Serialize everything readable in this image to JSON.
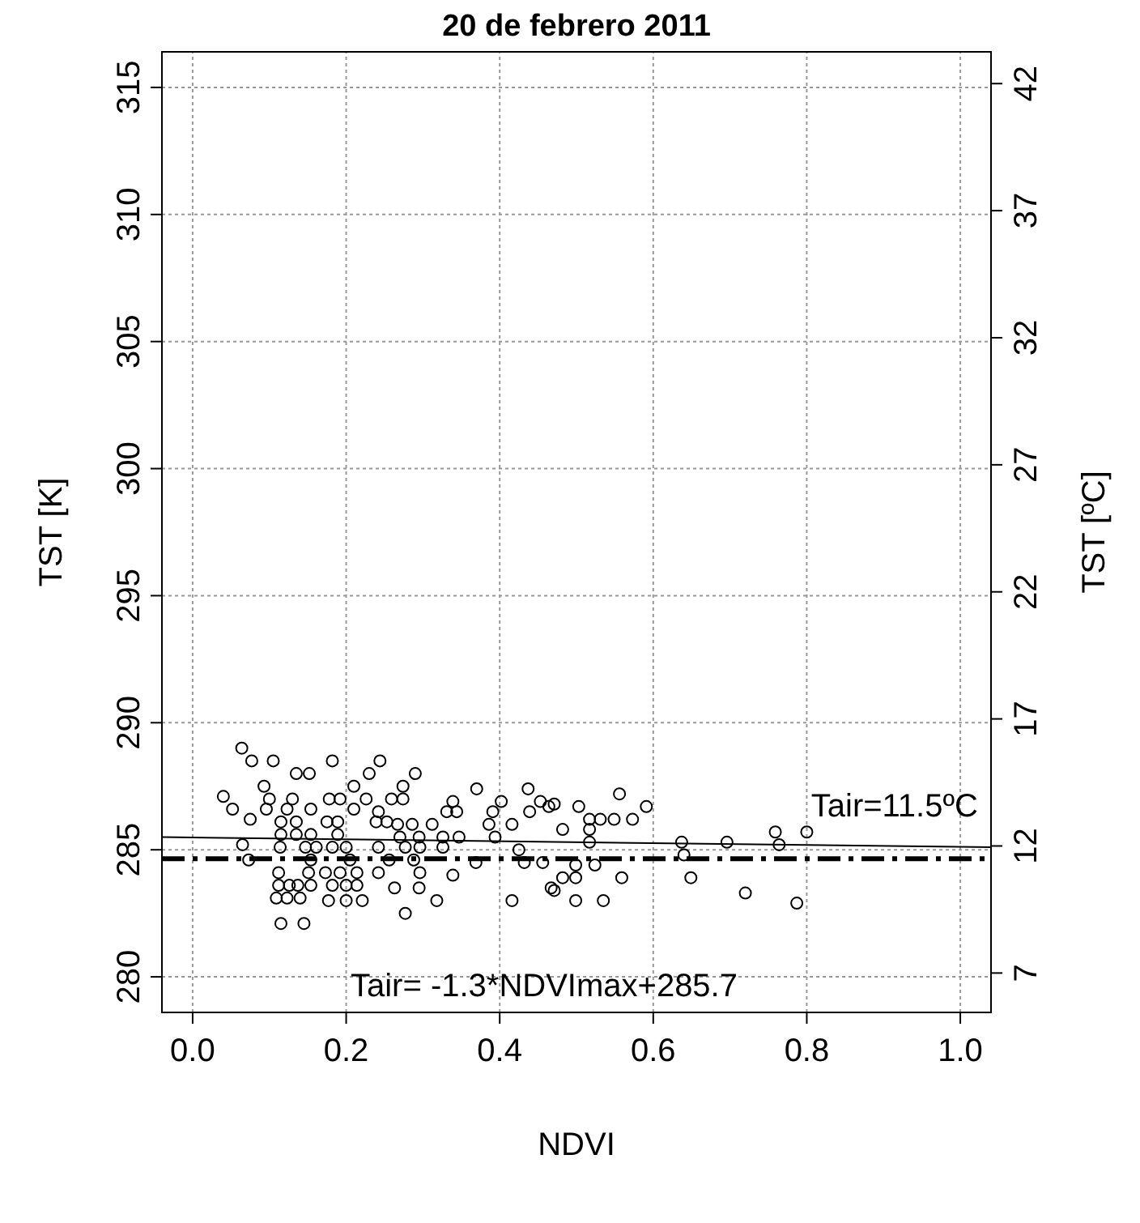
{
  "chart_data": {
    "type": "scatter",
    "title": "20 de febrero 2011",
    "xlabel": "NDVI",
    "ylabel": "TST [K]",
    "y2label": "TST [ºC]",
    "xlim": [
      -0.04,
      1.04
    ],
    "xticks": [
      {
        "value": 0,
        "label": "0.0"
      },
      {
        "value": 0.2,
        "label": "0.2"
      },
      {
        "value": 0.4,
        "label": "0.4"
      },
      {
        "value": 0.6,
        "label": "0.6"
      },
      {
        "value": 0.8,
        "label": "0.8"
      },
      {
        "value": 1,
        "label": "1.0"
      }
    ],
    "ylim": [
      278.6,
      316.4
    ],
    "yticks": [
      280,
      285,
      290,
      295,
      300,
      305,
      310,
      315
    ],
    "y2lim": [
      5.45,
      43.25
    ],
    "y2ticks": [
      7,
      12,
      17,
      22,
      27,
      32,
      37,
      42
    ],
    "grid": true,
    "series": [
      {
        "marker": "circle",
        "color": "#000000",
        "x": [
          0.064,
          0.077,
          0.105,
          0.135,
          0.152,
          0.182,
          0.244,
          0.23,
          0.29,
          0.093,
          0.21,
          0.274,
          0.37,
          0.437,
          0.04,
          0.1,
          0.13,
          0.178,
          0.192,
          0.226,
          0.259,
          0.274,
          0.339,
          0.402,
          0.453,
          0.471,
          0.052,
          0.096,
          0.123,
          0.154,
          0.21,
          0.242,
          0.331,
          0.344,
          0.391,
          0.439,
          0.075,
          0.115,
          0.135,
          0.175,
          0.189,
          0.239,
          0.253,
          0.267,
          0.286,
          0.312,
          0.386,
          0.416,
          0.115,
          0.135,
          0.154,
          0.189,
          0.27,
          0.295,
          0.326,
          0.347,
          0.394,
          0.065,
          0.114,
          0.147,
          0.161,
          0.182,
          0.2,
          0.242,
          0.277,
          0.296,
          0.326,
          0.425,
          0.073,
          0.154,
          0.205,
          0.256,
          0.288,
          0.369,
          0.432,
          0.456,
          0.112,
          0.151,
          0.173,
          0.192,
          0.214,
          0.242,
          0.296,
          0.339,
          0.112,
          0.126,
          0.137,
          0.154,
          0.182,
          0.2,
          0.214,
          0.263,
          0.295,
          0.109,
          0.123,
          0.14,
          0.177,
          0.2,
          0.221,
          0.318,
          0.416,
          0.277,
          0.115,
          0.145,
          0.471,
          0.464,
          0.503,
          0.556,
          0.591,
          0.517,
          0.531,
          0.549,
          0.573,
          0.482,
          0.517,
          0.517,
          0.637,
          0.696,
          0.759,
          0.8,
          0.764,
          0.64,
          0.499,
          0.524,
          0.482,
          0.499,
          0.559,
          0.649,
          0.467,
          0.499,
          0.535,
          0.72,
          0.787
        ],
        "values": [
          289.0,
          288.5,
          288.5,
          288.0,
          288.0,
          288.5,
          288.5,
          288.0,
          288.0,
          287.5,
          287.5,
          287.5,
          287.4,
          287.4,
          287.1,
          287.0,
          287.0,
          287.0,
          287.0,
          287.0,
          287.0,
          287.0,
          286.9,
          286.9,
          286.9,
          286.8,
          286.6,
          286.6,
          286.6,
          286.6,
          286.6,
          286.5,
          286.5,
          286.5,
          286.5,
          286.5,
          286.2,
          286.1,
          286.1,
          286.1,
          286.1,
          286.1,
          286.1,
          286.0,
          286.0,
          286.0,
          286.0,
          286.0,
          285.6,
          285.6,
          285.6,
          285.6,
          285.5,
          285.5,
          285.5,
          285.5,
          285.5,
          285.2,
          285.1,
          285.1,
          285.1,
          285.1,
          285.1,
          285.1,
          285.1,
          285.1,
          285.1,
          285.0,
          284.6,
          284.6,
          284.6,
          284.6,
          284.6,
          284.5,
          284.5,
          284.5,
          284.1,
          284.1,
          284.1,
          284.1,
          284.1,
          284.1,
          284.1,
          284.0,
          283.6,
          283.6,
          283.6,
          283.6,
          283.6,
          283.6,
          283.6,
          283.5,
          283.5,
          283.1,
          283.1,
          283.1,
          283.0,
          283.0,
          283.0,
          283.0,
          283.0,
          282.5,
          282.1,
          282.1,
          283.4,
          286.7,
          286.7,
          287.2,
          286.7,
          286.2,
          286.2,
          286.2,
          286.2,
          285.8,
          285.8,
          285.3,
          285.3,
          285.3,
          285.7,
          285.7,
          285.2,
          284.8,
          284.4,
          284.4,
          283.9,
          283.9,
          283.9,
          283.9,
          283.5,
          283.0,
          283.0,
          283.3,
          282.9
        ]
      },
      {
        "type": "line",
        "marker": "none",
        "color": "#000000",
        "line_style": "solid",
        "x": [
          -0.04,
          1.04
        ],
        "values": [
          285.5,
          285.1
        ]
      }
    ],
    "ref_lines": [
      {
        "axis": "y2",
        "value": 11.5,
        "label": "Tair=11.5ºC",
        "color": "#000000",
        "line_style": "dashed"
      }
    ],
    "annotations": [
      "Tair= -1.3*NDVImax+285.7"
    ]
  }
}
